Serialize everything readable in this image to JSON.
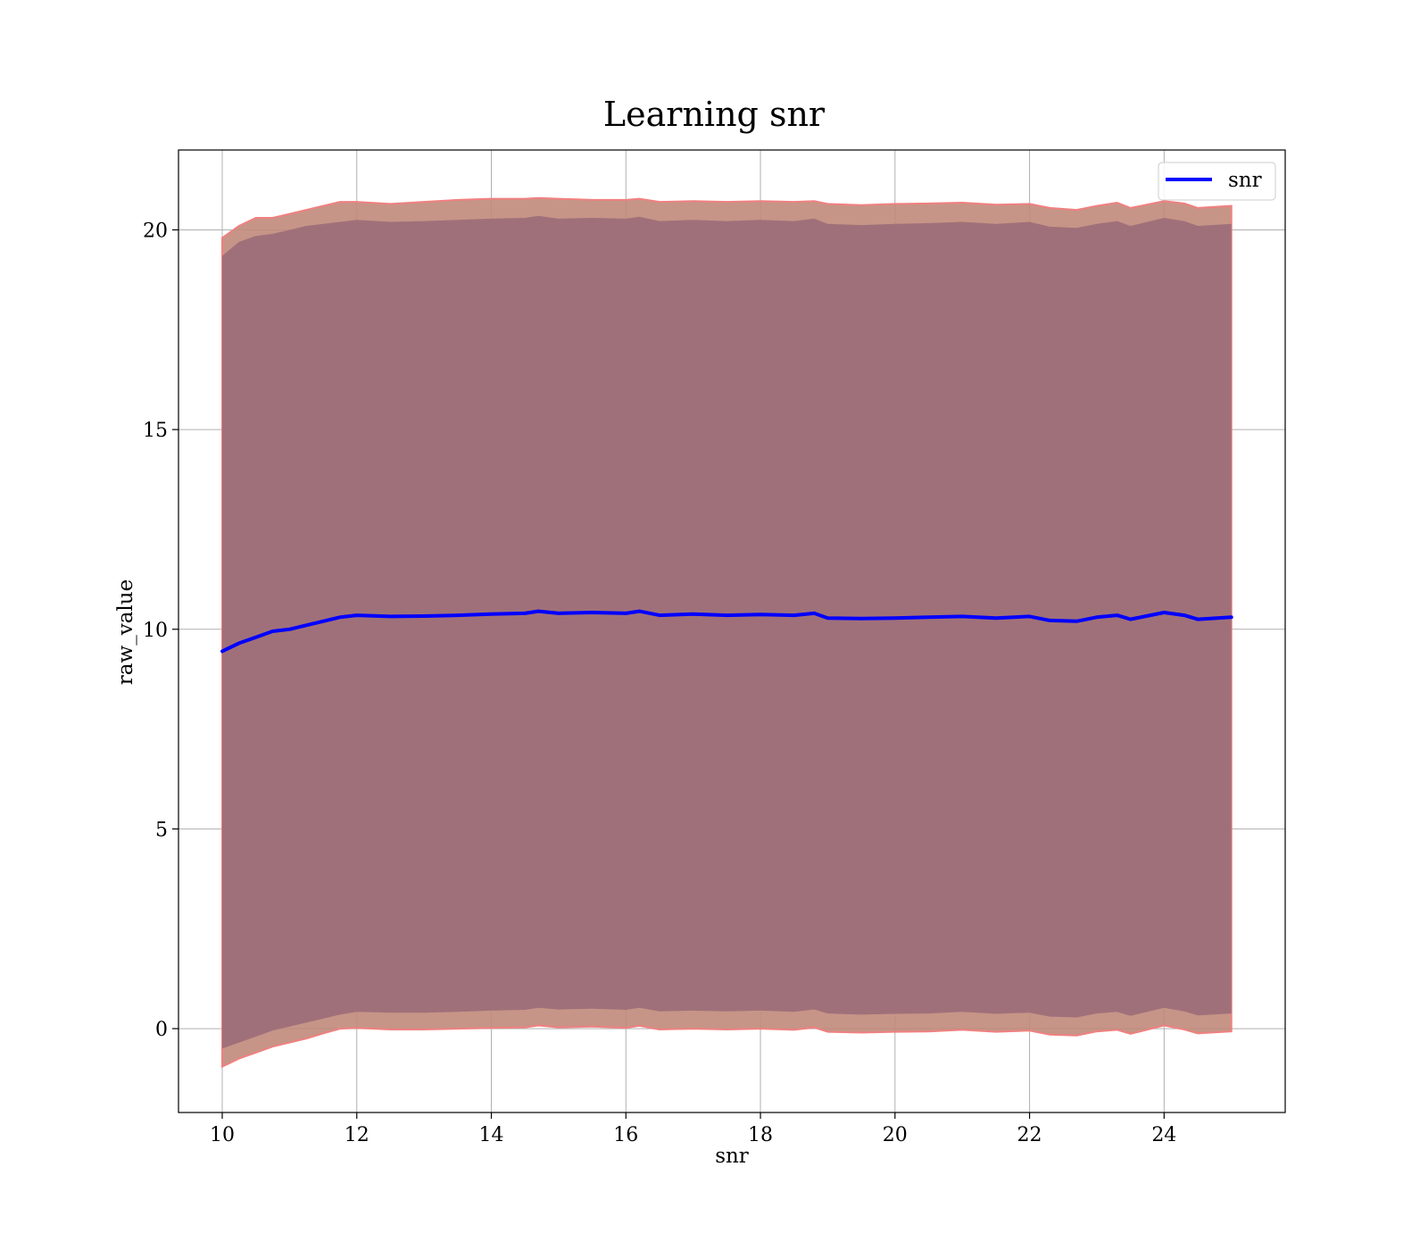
{
  "chart_data": {
    "type": "line",
    "title": "Learning snr",
    "xlabel": "snr",
    "ylabel": "raw_value",
    "xlim": [
      9.35,
      25.8
    ],
    "ylim": [
      -2.1,
      22.0
    ],
    "xticks": [
      10,
      12,
      14,
      16,
      18,
      20,
      22,
      24
    ],
    "yticks": [
      0,
      5,
      10,
      15,
      20
    ],
    "grid": true,
    "legend": {
      "position": "top-right",
      "entries": [
        "snr"
      ]
    },
    "colors": {
      "line": "#0000ff",
      "outer_band": "#c08a7a",
      "outer_band_edge": "#f08080",
      "inner_band": "#a0707a"
    },
    "series": [
      {
        "name": "snr",
        "x": [
          10.0,
          10.25,
          10.5,
          10.75,
          11.0,
          11.25,
          11.5,
          11.75,
          12.0,
          12.5,
          13.0,
          13.5,
          14.0,
          14.5,
          14.7,
          15.0,
          15.5,
          16.0,
          16.2,
          16.5,
          17.0,
          17.5,
          18.0,
          18.5,
          18.8,
          19.0,
          19.5,
          20.0,
          20.5,
          21.0,
          21.5,
          22.0,
          22.3,
          22.7,
          23.0,
          23.3,
          23.5,
          24.0,
          24.3,
          24.5,
          25.0
        ],
        "mean": [
          9.45,
          9.65,
          9.8,
          9.95,
          10.0,
          10.1,
          10.2,
          10.3,
          10.35,
          10.32,
          10.33,
          10.35,
          10.38,
          10.4,
          10.45,
          10.4,
          10.42,
          10.4,
          10.45,
          10.35,
          10.38,
          10.35,
          10.37,
          10.35,
          10.4,
          10.28,
          10.27,
          10.28,
          10.3,
          10.32,
          10.28,
          10.32,
          10.22,
          10.2,
          10.3,
          10.35,
          10.25,
          10.42,
          10.35,
          10.25,
          10.3
        ],
        "band_outer_upper": [
          19.8,
          20.1,
          20.3,
          20.3,
          20.4,
          20.5,
          20.6,
          20.7,
          20.7,
          20.65,
          20.7,
          20.75,
          20.78,
          20.78,
          20.8,
          20.78,
          20.75,
          20.75,
          20.78,
          20.7,
          20.72,
          20.7,
          20.72,
          20.7,
          20.72,
          20.65,
          20.62,
          20.65,
          20.66,
          20.68,
          20.63,
          20.65,
          20.55,
          20.5,
          20.6,
          20.68,
          20.55,
          20.72,
          20.66,
          20.55,
          20.6
        ],
        "band_inner_upper": [
          19.35,
          19.7,
          19.85,
          19.9,
          20.0,
          20.1,
          20.15,
          20.2,
          20.25,
          20.2,
          20.22,
          20.25,
          20.28,
          20.3,
          20.35,
          20.28,
          20.3,
          20.28,
          20.33,
          20.22,
          20.25,
          20.22,
          20.25,
          20.22,
          20.28,
          20.15,
          20.12,
          20.15,
          20.17,
          20.2,
          20.15,
          20.2,
          20.08,
          20.05,
          20.15,
          20.22,
          20.1,
          20.3,
          20.22,
          20.1,
          20.15
        ],
        "band_inner_lower": [
          -0.5,
          -0.35,
          -0.2,
          -0.05,
          0.05,
          0.15,
          0.25,
          0.35,
          0.42,
          0.4,
          0.4,
          0.42,
          0.45,
          0.47,
          0.52,
          0.48,
          0.5,
          0.47,
          0.52,
          0.43,
          0.45,
          0.43,
          0.45,
          0.42,
          0.48,
          0.38,
          0.35,
          0.37,
          0.38,
          0.42,
          0.37,
          0.4,
          0.3,
          0.28,
          0.38,
          0.42,
          0.32,
          0.52,
          0.43,
          0.33,
          0.38
        ],
        "band_outer_lower": [
          -0.95,
          -0.75,
          -0.6,
          -0.45,
          -0.35,
          -0.25,
          -0.12,
          0.0,
          0.02,
          -0.02,
          -0.02,
          0.0,
          0.02,
          0.03,
          0.08,
          0.03,
          0.05,
          0.02,
          0.07,
          -0.02,
          0.0,
          -0.02,
          0.0,
          -0.03,
          0.03,
          -0.08,
          -0.1,
          -0.08,
          -0.07,
          -0.03,
          -0.08,
          -0.05,
          -0.15,
          -0.17,
          -0.07,
          -0.03,
          -0.13,
          0.08,
          -0.02,
          -0.12,
          -0.07
        ]
      }
    ]
  }
}
